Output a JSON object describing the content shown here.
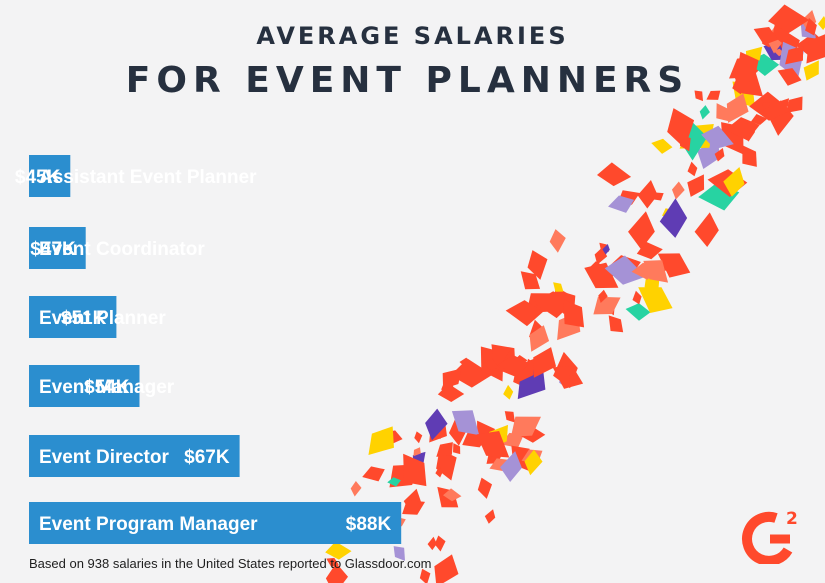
{
  "header": {
    "line1": "AVERAGE SALARIES",
    "line2": "FOR EVENT PLANNERS"
  },
  "footnote": "Based on 938 salaries in the United States reported to Glassdoor.com",
  "logo": {
    "text": "G",
    "superscript": "2",
    "color": "#ff492c"
  },
  "colors": {
    "bar": "#2b8ecf",
    "bar_text": "#ffffff",
    "background": "#f3f3f4",
    "title": "#26303f",
    "confetti": [
      "#ff492c",
      "#ff7a5c",
      "#ffd200",
      "#27d3a2",
      "#5f3cb4",
      "#a592d6"
    ]
  },
  "chart_data": {
    "type": "bar",
    "orientation": "horizontal",
    "title": "AVERAGE SALARIES FOR EVENT PLANNERS",
    "categories": [
      "Assistant Event Planner",
      "Event Coordinator",
      "Event Planner",
      "Event Manager",
      "Event Director",
      "Event Program Manager"
    ],
    "values": [
      45,
      47,
      51,
      54,
      67,
      88
    ],
    "value_labels": [
      "$45K",
      "$47K",
      "$51K",
      "$54K",
      "$67K",
      "$88K"
    ],
    "units": "thousands USD",
    "grid": false,
    "legend": "none"
  }
}
